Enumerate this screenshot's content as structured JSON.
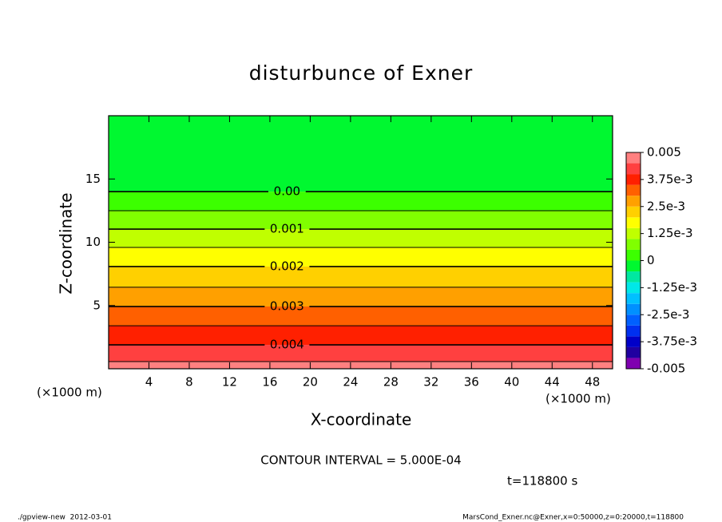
{
  "chart_data": {
    "type": "contour",
    "title": "disturbunce of Exner",
    "xlabel": "X-coordinate",
    "ylabel": "Z-coordinate",
    "xunit": "(×1000 m)",
    "xlim": [
      0,
      50
    ],
    "xticks": [
      4,
      8,
      12,
      16,
      20,
      24,
      28,
      32,
      36,
      40,
      44,
      48
    ],
    "ylim": [
      0,
      20
    ],
    "yticks": [
      5,
      10,
      15
    ],
    "contours": {
      "levels": [
        0,
        0.0005,
        0.001,
        0.0015,
        0.002,
        0.0025,
        0.003,
        0.0035,
        0.004,
        0.0045
      ],
      "z": [
        14.0,
        12.49,
        11.04,
        9.59,
        8.08,
        6.44,
        4.92,
        3.4,
        1.89,
        0.57
      ],
      "value_labels": [
        "0.00",
        null,
        "0.001",
        null,
        "0.002",
        null,
        "0.003",
        null,
        "0.004",
        null
      ]
    },
    "colorbar": {
      "levels": [
        -0.005,
        -0.0045,
        -0.004,
        -0.0035,
        -0.003,
        -0.0025,
        -0.002,
        -0.0015,
        -0.001,
        -0.0005,
        0,
        0.0005,
        0.001,
        0.0015,
        0.002,
        0.0025,
        0.003,
        0.0035,
        0.004,
        0.0045,
        0.005
      ],
      "colors": [
        "#7f00b0",
        "#2000a0",
        "#0000c8",
        "#0030f0",
        "#0060ff",
        "#0090ff",
        "#00c0ff",
        "#00e8e8",
        "#00e8a0",
        "#00f830",
        "#3cff00",
        "#80ff00",
        "#c0ff00",
        "#ffff00",
        "#ffd000",
        "#ffa000",
        "#ff6000",
        "#ff2000",
        "#ff4040",
        "#ff8080"
      ],
      "ticks": [
        {
          "value": 0.005,
          "label": "0.005"
        },
        {
          "value": 0.00375,
          "label": "3.75e-3"
        },
        {
          "value": 0.0025,
          "label": "2.5e-3"
        },
        {
          "value": 0.00125,
          "label": "1.25e-3"
        },
        0,
        {
          "value": -0.00125,
          "label": "-1.25e-3"
        },
        {
          "value": -0.0025,
          "label": "-2.5e-3"
        },
        {
          "value": -0.00375,
          "label": "-3.75e-3"
        },
        {
          "value": -0.005,
          "label": "-0.005"
        }
      ]
    },
    "annotations": [
      "CONTOUR INTERVAL = 5.000E-04",
      "t=118800 s",
      "./gpview-new  2012-03-01",
      "MarsCond_Exner.nc@Exner,x=0:50000,z=0:20000,t=118800"
    ]
  }
}
